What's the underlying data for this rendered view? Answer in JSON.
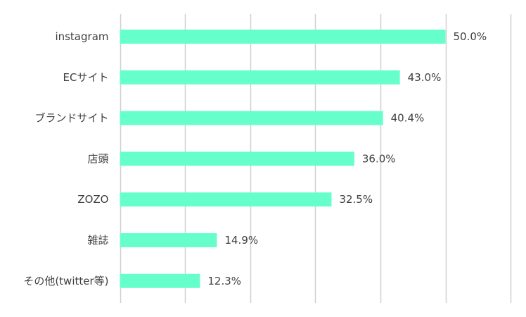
{
  "chart_data": {
    "type": "bar",
    "orientation": "horizontal",
    "title": "",
    "xlabel": "",
    "ylabel": "",
    "grid": true,
    "legend": "none",
    "xlim": [
      0,
      60
    ],
    "categories": [
      "instagram",
      "ECサイト",
      "ブランドサイト",
      "店頭",
      "ZOZO",
      "雑誌",
      "その他(twitter等)"
    ],
    "values": [
      50.0,
      43.0,
      40.4,
      36.0,
      32.5,
      14.9,
      12.3
    ],
    "value_labels": [
      "50.0%",
      "43.0%",
      "40.4%",
      "36.0%",
      "32.5%",
      "14.9%",
      "12.3%"
    ],
    "colors": {
      "bar": "#66ffcc",
      "grid": "#d0d0d0",
      "text": "#3f3f3f"
    }
  }
}
